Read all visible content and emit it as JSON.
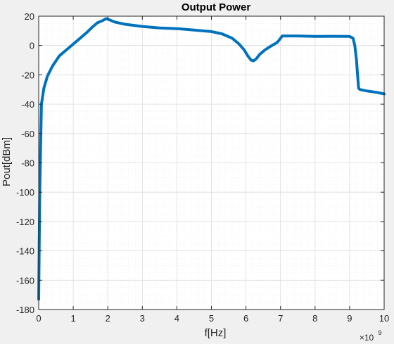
{
  "chart_data": {
    "type": "line",
    "title": "Output Power",
    "xlabel": "f[Hz]",
    "ylabel": "Pout[dBm]",
    "x_exponent_label": "×10",
    "x_exponent_power": "9",
    "xlim": [
      0,
      10
    ],
    "ylim": [
      -180,
      20
    ],
    "x_ticks": [
      0,
      1,
      2,
      3,
      4,
      5,
      6,
      7,
      8,
      9,
      10
    ],
    "x_tick_labels": [
      "0",
      "1",
      "2",
      "3",
      "4",
      "5",
      "6",
      "7",
      "8",
      "9",
      "10"
    ],
    "y_ticks": [
      -180,
      -160,
      -140,
      -120,
      -100,
      -80,
      -60,
      -40,
      -20,
      0,
      20
    ],
    "y_tick_labels": [
      "-180",
      "-160",
      "-140",
      "-120",
      "-100",
      "-80",
      "-60",
      "-40",
      "-20",
      "0",
      "20"
    ],
    "grid": true,
    "minor_grid": true,
    "colors": {
      "line": "#0072BD",
      "grid": "#dcdcdc",
      "minor_grid": "#ececec",
      "axes_bg": "#ffffff",
      "figure_bg": "#f0f0f0"
    },
    "series": [
      {
        "x": [
          0.0,
          0.03,
          0.08,
          0.15,
          0.25,
          0.4,
          0.6,
          0.8,
          1.0,
          1.2,
          1.4,
          1.55,
          1.7,
          1.85,
          1.95,
          2.05,
          2.2,
          2.5,
          3.0,
          3.5,
          4.0,
          4.5,
          5.0,
          5.3,
          5.6,
          5.8,
          5.95,
          6.05,
          6.15,
          6.22,
          6.3,
          6.4,
          6.55,
          6.75,
          6.9,
          6.97,
          7.05,
          7.5,
          8.0,
          8.5,
          9.0,
          9.1,
          9.15,
          9.2,
          9.23,
          9.26,
          9.3,
          9.5,
          9.8,
          10.0
        ],
        "y": [
          -173,
          -100,
          -40,
          -29,
          -21,
          -14,
          -7,
          -3,
          1,
          5,
          9,
          12.5,
          15.5,
          17,
          18.3,
          17.5,
          16,
          14.5,
          13,
          12,
          11.5,
          10.5,
          9.5,
          8,
          5,
          1,
          -3,
          -7,
          -10,
          -10.5,
          -9,
          -6,
          -3,
          0,
          2,
          4,
          6.5,
          6.5,
          6.2,
          6.3,
          6.2,
          5,
          0,
          -10,
          -20,
          -29,
          -30,
          -31,
          -32,
          -33
        ]
      }
    ]
  }
}
